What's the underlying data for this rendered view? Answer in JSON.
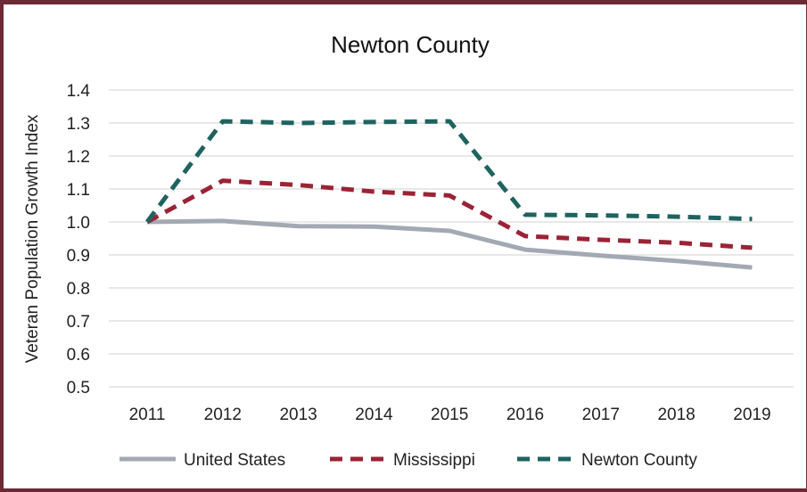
{
  "chart_data": {
    "type": "line",
    "title": "Newton County",
    "xlabel": "",
    "ylabel": "Veteran Population Growth Index",
    "categories": [
      "2011",
      "2012",
      "2013",
      "2014",
      "2015",
      "2016",
      "2017",
      "2018",
      "2019"
    ],
    "ylim": [
      0.5,
      1.4
    ],
    "yticks": [
      "1.4",
      "1.3",
      "1.2",
      "1.1",
      "1.0",
      "0.9",
      "0.8",
      "0.7",
      "0.6",
      "0.5"
    ],
    "grid": true,
    "legend_position": "bottom",
    "series": [
      {
        "name": "United States",
        "color": "#a3a9b3",
        "dash": "solid",
        "values": [
          1.0,
          1.003,
          0.987,
          0.986,
          0.973,
          0.916,
          0.898,
          0.882,
          0.862
        ]
      },
      {
        "name": "Mississippi",
        "color": "#9b2335",
        "dash": "dashed",
        "values": [
          1.0,
          1.125,
          1.112,
          1.092,
          1.08,
          0.957,
          0.946,
          0.937,
          0.922
        ]
      },
      {
        "name": "Newton County",
        "color": "#1f6360",
        "dash": "dashed",
        "values": [
          1.0,
          1.305,
          1.3,
          1.303,
          1.305,
          1.022,
          1.02,
          1.016,
          1.009
        ]
      }
    ]
  }
}
